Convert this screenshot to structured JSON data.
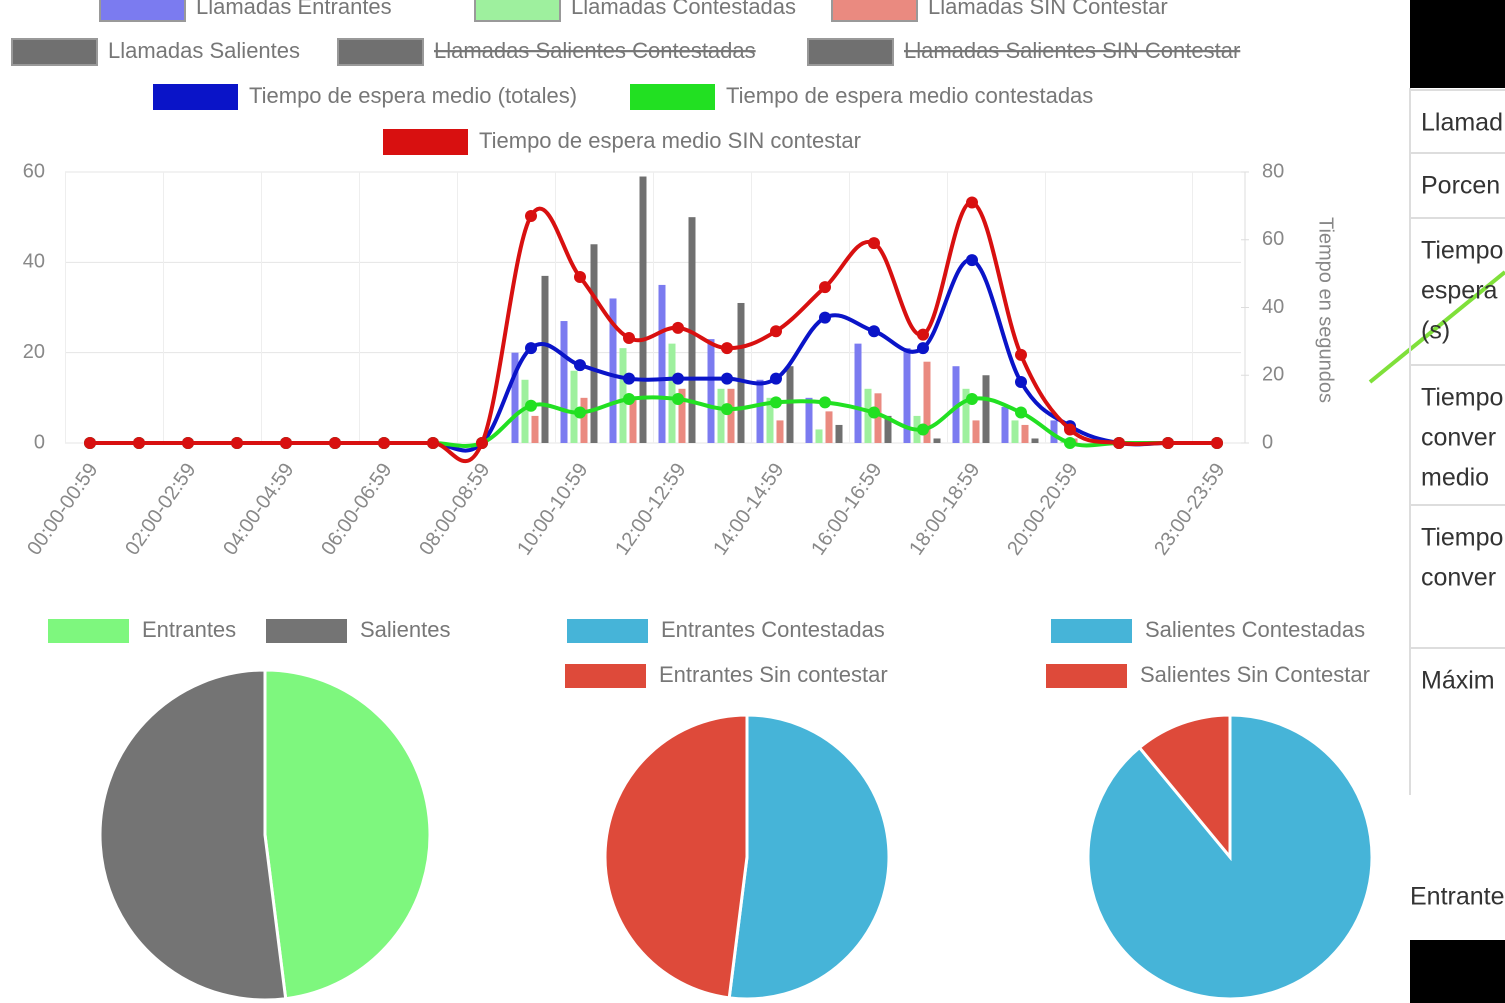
{
  "chart_data": [
    {
      "type": "combo",
      "categories": [
        "00:00-00:59",
        null,
        "02:00-02:59",
        null,
        "04:00-04:59",
        null,
        "06:00-06:59",
        null,
        "08:00-08:59",
        null,
        "10:00-10:59",
        null,
        "12:00-12:59",
        null,
        "14:00-14:59",
        null,
        "16:00-16:59",
        null,
        "18:00-18:59",
        null,
        "20:00-20:59",
        null,
        null,
        "23:00-23:59"
      ],
      "ylim": [
        0,
        60
      ],
      "yticks": [
        0,
        20,
        40,
        60
      ],
      "y2lim": [
        0,
        80
      ],
      "y2ticks": [
        0,
        20,
        40,
        60,
        80
      ],
      "y2label": "Tiempo en segundos",
      "grid": true,
      "series": [
        {
          "name": "Llamadas Entrantes",
          "type": "bar",
          "color": "#7b7bf0",
          "values": [
            0,
            0,
            0,
            0,
            0,
            0,
            0,
            0,
            0,
            20,
            27,
            32,
            35,
            23,
            14,
            10,
            22,
            21,
            17,
            8,
            5,
            0,
            0,
            0
          ]
        },
        {
          "name": "Llamadas Contestadas",
          "type": "bar",
          "color": "#9ef09e",
          "values": [
            0,
            0,
            0,
            0,
            0,
            0,
            0,
            0,
            0,
            14,
            16,
            21,
            22,
            12,
            10,
            3,
            12,
            6,
            12,
            5,
            1,
            0,
            0,
            0
          ]
        },
        {
          "name": "Llamadas SIN Contestar",
          "type": "bar",
          "color": "#ea8a80",
          "values": [
            0,
            0,
            0,
            0,
            0,
            0,
            0,
            0,
            0,
            6,
            10,
            10,
            12,
            12,
            5,
            7,
            11,
            18,
            5,
            4,
            1,
            0,
            0,
            0
          ]
        },
        {
          "name": "Llamadas Salientes",
          "type": "bar",
          "color": "#707070",
          "values": [
            0,
            0,
            0,
            0,
            0,
            0,
            0,
            0,
            0,
            37,
            44,
            59,
            50,
            31,
            17,
            4,
            6,
            1,
            15,
            1,
            0,
            0,
            0,
            0
          ]
        },
        {
          "name": "Llamadas Salientes Contestadas",
          "type": "bar",
          "color": "#707070",
          "hidden": true
        },
        {
          "name": "Llamadas Salientes SIN Contestar",
          "type": "bar",
          "color": "#707070",
          "hidden": true
        },
        {
          "name": "Tiempo de espera medio (totales)",
          "type": "line",
          "axis": "y2",
          "color": "#0a14c8",
          "values": [
            0,
            0,
            0,
            0,
            0,
            0,
            0,
            0,
            0,
            28,
            23,
            19,
            19,
            19,
            19,
            37,
            33,
            28,
            54,
            18,
            5,
            0,
            0,
            0
          ]
        },
        {
          "name": "Tiempo de espera medio contestadas",
          "type": "line",
          "axis": "y2",
          "color": "#22e022",
          "values": [
            0,
            0,
            0,
            0,
            0,
            0,
            0,
            0,
            0,
            11,
            9,
            13,
            13,
            10,
            12,
            12,
            9,
            4,
            13,
            9,
            0,
            0,
            0,
            0
          ]
        },
        {
          "name": "Tiempo de espera medio SIN contestar",
          "type": "line",
          "axis": "y2",
          "color": "#d81010",
          "values": [
            0,
            0,
            0,
            0,
            0,
            0,
            0,
            0,
            0,
            67,
            49,
            31,
            34,
            28,
            33,
            46,
            59,
            32,
            71,
            26,
            4,
            0,
            0,
            0
          ]
        }
      ]
    },
    {
      "type": "pie",
      "categories": [
        "Entrantes",
        "Salientes"
      ],
      "values": [
        48,
        52
      ],
      "colors": [
        "#7ef77e",
        "#747474"
      ]
    },
    {
      "type": "pie",
      "categories": [
        "Entrantes Contestadas",
        "Entrantes Sin contestar"
      ],
      "values": [
        52,
        48
      ],
      "colors": [
        "#46b4d8",
        "#de4a3a"
      ]
    },
    {
      "type": "pie",
      "categories": [
        "Salientes Contestadas",
        "Salientes Sin Contestar"
      ],
      "values": [
        89,
        11
      ],
      "colors": [
        "#46b4d8",
        "#de4a3a"
      ]
    }
  ],
  "side_panel": {
    "rows": [
      [
        "Llamad"
      ],
      [
        "Porcen"
      ],
      [
        "Tiempo",
        "espera",
        "(s)"
      ],
      [
        "Tiempo",
        "conver",
        "medio"
      ],
      [
        "Tiempo",
        "conver"
      ],
      [
        "Máxim"
      ]
    ],
    "footer": "Entrante"
  }
}
